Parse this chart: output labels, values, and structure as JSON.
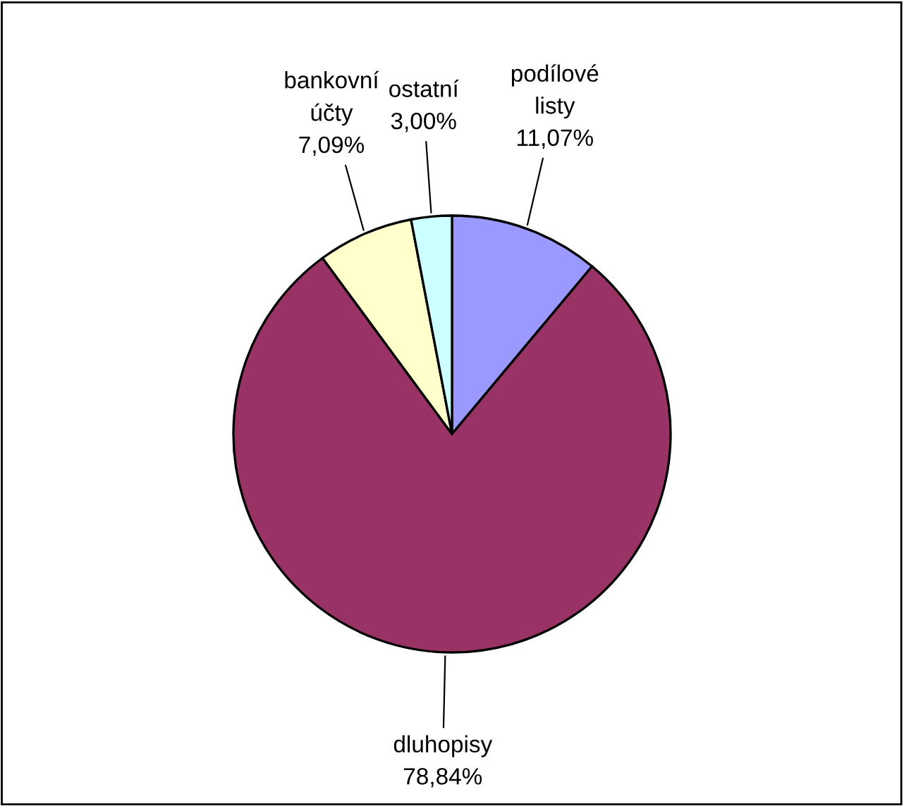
{
  "chart_data": {
    "type": "pie",
    "categories": [
      "podílové listy",
      "dluhopisy",
      "bankovní účty",
      "ostatní"
    ],
    "values": [
      11.07,
      78.84,
      7.09,
      3.0
    ],
    "value_labels": [
      "11,07%",
      "78,84%",
      "7,09%",
      "3,00%"
    ],
    "colors": [
      "#9999ff",
      "#993366",
      "#ffffcc",
      "#ccffff"
    ]
  }
}
